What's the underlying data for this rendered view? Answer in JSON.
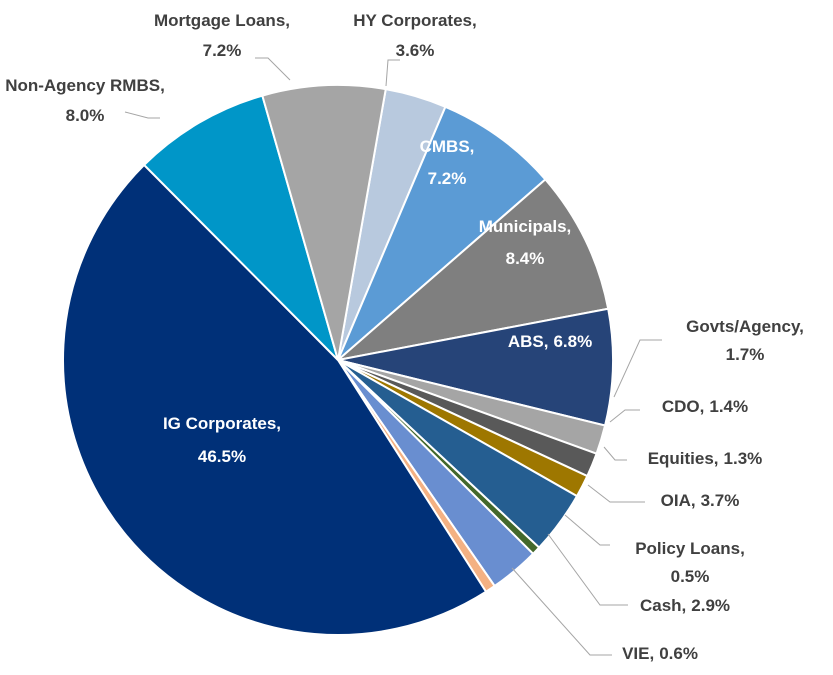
{
  "chart_data": {
    "type": "pie",
    "categories": [
      "HY Corporates,",
      "CMBS,",
      "Municipals,",
      "ABS,",
      "Govts/Agency,",
      "CDO,",
      "Equities,",
      "OIA,",
      "Policy Loans,",
      "Cash,",
      "VIE,",
      "IG Corporates,",
      "Non-Agency RMBS,",
      "Mortgage Loans,"
    ],
    "values": [
      3.6,
      7.2,
      8.4,
      6.8,
      1.7,
      1.4,
      1.3,
      3.7,
      0.5,
      2.9,
      0.6,
      46.5,
      8.0,
      7.2
    ],
    "value_labels": [
      "3.6%",
      "7.2%",
      "8.4%",
      "6.8%",
      "1.7%",
      "1.4%",
      "1.3%",
      "3.7%",
      "0.5%",
      "2.9%",
      "0.6%",
      "46.5%",
      "8.0%",
      "7.2%"
    ],
    "colors": [
      "#b8c9de",
      "#5b9bd5",
      "#7f7f7f",
      "#264478",
      "#a5a5a5",
      "#595959",
      "#9e7700",
      "#255e91",
      "#43682b",
      "#698ed0",
      "#f4b183",
      "#003078",
      "#0096c8",
      "#a5a5a5"
    ]
  }
}
